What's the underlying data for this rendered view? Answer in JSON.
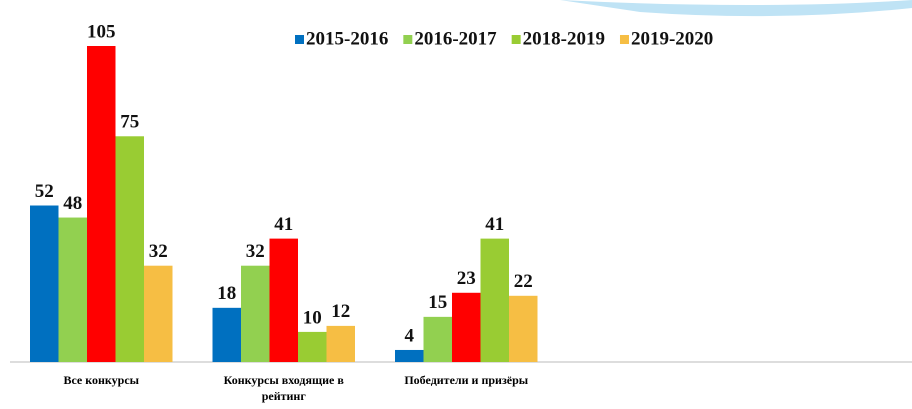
{
  "chart_data": {
    "type": "bar",
    "categories": [
      "Все конкурсы",
      "Конкурсы входящие в рейтинг",
      "Победители и призёры"
    ],
    "series": [
      {
        "name": "2015-2016",
        "color": "#0070c0",
        "values": [
          52,
          18,
          4
        ]
      },
      {
        "name": "2016-2017",
        "color": "#92d050",
        "values": [
          48,
          32,
          15
        ]
      },
      {
        "name": null,
        "color": "#ff0000",
        "values": [
          105,
          41,
          23
        ]
      },
      {
        "name": "2018-2019",
        "color": "#99cc33",
        "values": [
          75,
          10,
          41
        ]
      },
      {
        "name": "2019-2020",
        "color": "#f6be44",
        "values": [
          32,
          12,
          22
        ]
      }
    ],
    "ylim": [
      0,
      105
    ]
  }
}
